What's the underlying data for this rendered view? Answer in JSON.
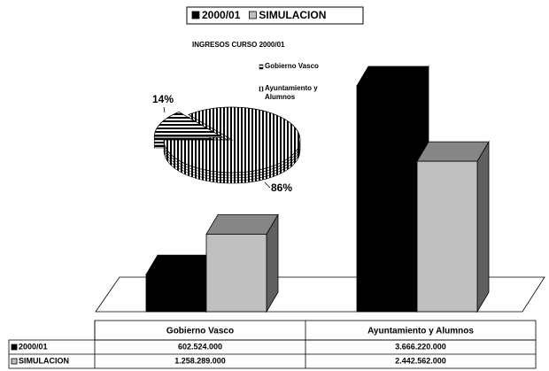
{
  "chart_data": [
    {
      "type": "bar",
      "categories": [
        "Gobierno Vasco",
        "Ayuntamiento y Alumnos"
      ],
      "series": [
        {
          "name": "2000/01",
          "color": "#000000",
          "values": [
            602524000,
            3666220000
          ],
          "value_labels": [
            "602.524.000",
            "3.666.220.000"
          ]
        },
        {
          "name": "SIMULACION",
          "color": "#c0c0c0",
          "values": [
            1258289000,
            2442562000
          ],
          "value_labels": [
            "1.258.289.000",
            "2.442.562.000"
          ]
        }
      ],
      "legend": "top"
    },
    {
      "type": "pie",
      "title": "INGRESOS CURSO 2000/01",
      "categories": [
        "Gobierno Vasco",
        "Ayuntamiento y Alumnos"
      ],
      "values": [
        14,
        86
      ],
      "value_labels": [
        "14%",
        "86%"
      ],
      "legend": "right"
    }
  ]
}
